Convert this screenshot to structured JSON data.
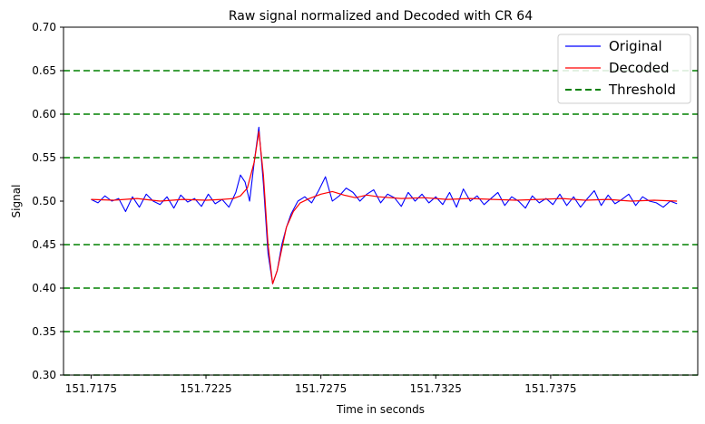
{
  "chart_data": {
    "type": "line",
    "title": "Raw signal normalized and Decoded with CR 64",
    "xlabel": "Time in seconds",
    "ylabel": "Signal",
    "xlim": [
      151.7163,
      151.7439
    ],
    "ylim": [
      0.3,
      0.7
    ],
    "xticks": [
      151.7175,
      151.7225,
      151.7275,
      151.7325,
      151.7375
    ],
    "xtick_labels": [
      "151.7175",
      "151.7225",
      "151.7275",
      "151.7325",
      "151.7375"
    ],
    "yticks": [
      0.3,
      0.35,
      0.4,
      0.45,
      0.5,
      0.55,
      0.6,
      0.65,
      0.7
    ],
    "ytick_labels": [
      "0.30",
      "0.35",
      "0.40",
      "0.45",
      "0.50",
      "0.55",
      "0.60",
      "0.65",
      "0.70"
    ],
    "grid": false,
    "legend": "top-right",
    "series": [
      {
        "name": "Original",
        "color": "#0000ff",
        "x": [
          151.7175,
          151.7178,
          151.7181,
          151.7184,
          151.7187,
          151.719,
          151.7193,
          151.7196,
          151.7199,
          151.7202,
          151.7205,
          151.7208,
          151.7211,
          151.7214,
          151.7217,
          151.722,
          151.7223,
          151.7226,
          151.7229,
          151.7232,
          151.7235,
          151.7238,
          151.724,
          151.7242,
          151.7244,
          151.7246,
          151.7248,
          151.725,
          151.7252,
          151.7254,
          151.7256,
          151.7258,
          151.726,
          151.7262,
          151.7265,
          151.7268,
          151.7271,
          151.7274,
          151.7277,
          151.728,
          151.7283,
          151.7286,
          151.7289,
          151.7292,
          151.7295,
          151.7298,
          151.7301,
          151.7304,
          151.7307,
          151.731,
          151.7313,
          151.7316,
          151.7319,
          151.7322,
          151.7325,
          151.7328,
          151.7331,
          151.7334,
          151.7337,
          151.734,
          151.7343,
          151.7346,
          151.7349,
          151.7352,
          151.7355,
          151.7358,
          151.7361,
          151.7364,
          151.7367,
          151.737,
          151.7373,
          151.7376,
          151.7379,
          151.7382,
          151.7385,
          151.7388,
          151.7391,
          151.7394,
          151.7397,
          151.74,
          151.7403,
          151.7406,
          151.7409,
          151.7412,
          151.7415,
          151.7418,
          151.7421,
          151.7424,
          151.7427,
          151.743
        ],
        "y": [
          0.502,
          0.498,
          0.506,
          0.5,
          0.503,
          0.488,
          0.505,
          0.493,
          0.508,
          0.5,
          0.496,
          0.505,
          0.492,
          0.507,
          0.499,
          0.503,
          0.494,
          0.508,
          0.497,
          0.502,
          0.493,
          0.51,
          0.53,
          0.522,
          0.5,
          0.545,
          0.585,
          0.52,
          0.44,
          0.405,
          0.42,
          0.45,
          0.47,
          0.485,
          0.5,
          0.505,
          0.498,
          0.512,
          0.528,
          0.5,
          0.506,
          0.515,
          0.51,
          0.5,
          0.508,
          0.513,
          0.498,
          0.508,
          0.504,
          0.494,
          0.51,
          0.5,
          0.508,
          0.498,
          0.505,
          0.496,
          0.51,
          0.493,
          0.514,
          0.5,
          0.506,
          0.496,
          0.503,
          0.51,
          0.495,
          0.505,
          0.5,
          0.492,
          0.506,
          0.498,
          0.503,
          0.496,
          0.508,
          0.495,
          0.505,
          0.493,
          0.503,
          0.512,
          0.495,
          0.507,
          0.497,
          0.502,
          0.508,
          0.495,
          0.505,
          0.5,
          0.498,
          0.493,
          0.5,
          0.497
        ]
      },
      {
        "name": "Decoded",
        "color": "#ff0000",
        "x": [
          151.7175,
          151.7185,
          151.7195,
          151.7205,
          151.7215,
          151.7225,
          151.7232,
          151.7237,
          151.724,
          151.7243,
          151.7246,
          151.7248,
          151.725,
          151.7252,
          151.7254,
          151.7256,
          151.7258,
          151.726,
          151.7263,
          151.7266,
          151.727,
          151.7275,
          151.728,
          151.7285,
          151.729,
          151.7295,
          151.73,
          151.731,
          151.732,
          151.733,
          151.734,
          151.735,
          151.736,
          151.737,
          151.738,
          151.739,
          151.74,
          151.741,
          151.742,
          151.743
        ],
        "y": [
          0.502,
          0.501,
          0.503,
          0.5,
          0.502,
          0.501,
          0.502,
          0.503,
          0.506,
          0.515,
          0.545,
          0.58,
          0.53,
          0.45,
          0.405,
          0.42,
          0.445,
          0.47,
          0.488,
          0.498,
          0.503,
          0.508,
          0.511,
          0.507,
          0.504,
          0.507,
          0.505,
          0.503,
          0.504,
          0.502,
          0.503,
          0.502,
          0.501,
          0.502,
          0.503,
          0.501,
          0.502,
          0.5,
          0.501,
          0.5
        ]
      }
    ],
    "thresholds": {
      "name": "Threshold",
      "color": "#008000",
      "values": [
        0.3,
        0.35,
        0.4,
        0.45,
        0.55,
        0.6,
        0.65
      ]
    }
  }
}
